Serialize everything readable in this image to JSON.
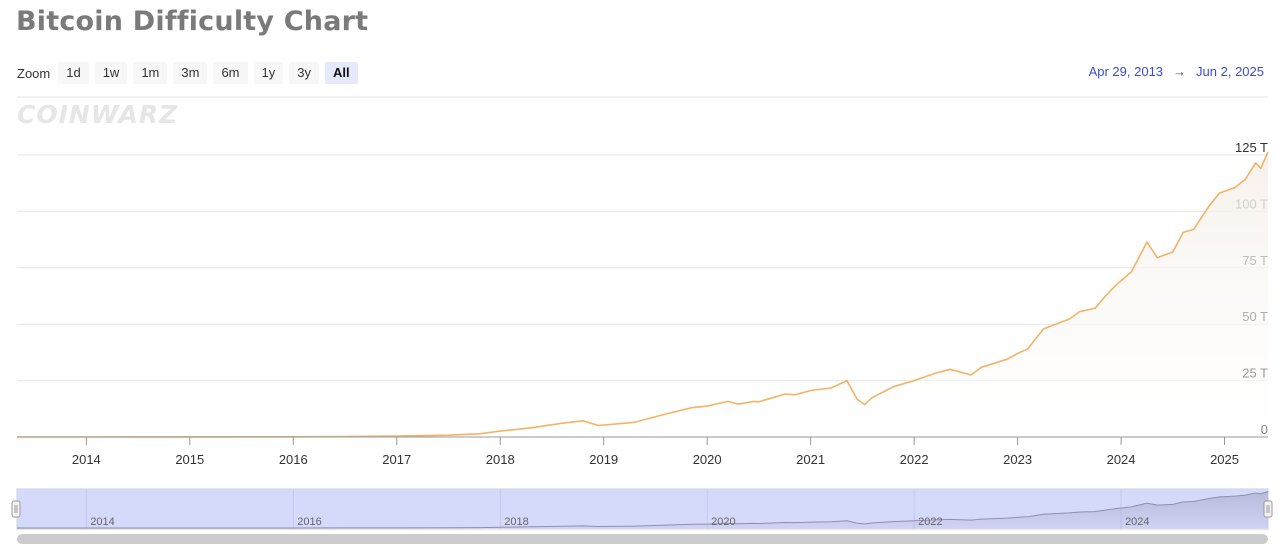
{
  "title": "Bitcoin Difficulty Chart",
  "zoom": {
    "label": "Zoom",
    "buttons": [
      "1d",
      "1w",
      "1m",
      "3m",
      "6m",
      "1y",
      "3y",
      "All"
    ],
    "active": "All"
  },
  "range": {
    "from": "Apr 29, 2013",
    "arrow": "→",
    "to": "Jun 2, 2025"
  },
  "logo_text": "COINWARZ",
  "colors": {
    "line": "#f2b367",
    "area_top": "#f5efe8",
    "navigator_mask": "#d2d6fa",
    "range_date": "#3b4ccf"
  },
  "chart_data": {
    "type": "area",
    "title": "Bitcoin Difficulty Chart",
    "xlabel": "",
    "ylabel": "",
    "y_unit": "T",
    "ylim": [
      0,
      125
    ],
    "yticks": [
      0,
      25,
      50,
      75,
      100,
      125
    ],
    "ytick_labels": [
      "0",
      "25 T",
      "50 T",
      "75 T",
      "100 T",
      "125 T"
    ],
    "xlim": [
      2013.33,
      2025.42
    ],
    "xticks": [
      "2014",
      "2015",
      "2016",
      "2017",
      "2018",
      "2019",
      "2020",
      "2021",
      "2022",
      "2023",
      "2024",
      "2025"
    ],
    "navigator_ticks": [
      "2014",
      "2016",
      "2018",
      "2020",
      "2022",
      "2024"
    ],
    "grid": true,
    "legend": "none",
    "series": [
      {
        "x": [
          2013.33,
          2014.0,
          2015.0,
          2016.0,
          2016.5,
          2017.0,
          2017.5,
          2017.8,
          2018.0,
          2018.3,
          2018.6,
          2018.8,
          2018.95,
          2019.3,
          2019.6,
          2019.85,
          2020.0,
          2020.2,
          2020.3,
          2020.45,
          2020.5,
          2020.75,
          2020.85,
          2021.0,
          2021.2,
          2021.35,
          2021.45,
          2021.52,
          2021.6,
          2021.8,
          2022.0,
          2022.2,
          2022.35,
          2022.55,
          2022.65,
          2022.9,
          2023.0,
          2023.1,
          2023.25,
          2023.5,
          2023.6,
          2023.75,
          2023.85,
          2023.95,
          2024.1,
          2024.25,
          2024.35,
          2024.5,
          2024.6,
          2024.7,
          2024.85,
          2024.95,
          2025.1,
          2025.2,
          2025.3,
          2025.35,
          2025.42
        ],
        "y": [
          0.0,
          0.01,
          0.05,
          0.1,
          0.2,
          0.4,
          0.8,
          1.4,
          2.6,
          4.1,
          6.1,
          7.2,
          5.1,
          6.5,
          10.2,
          13.0,
          13.7,
          15.8,
          14.6,
          15.8,
          15.6,
          19.0,
          18.7,
          20.6,
          21.7,
          25.0,
          16.7,
          14.4,
          17.6,
          22.3,
          25.0,
          28.2,
          30.0,
          27.5,
          30.9,
          34.5,
          37.0,
          39.1,
          47.9,
          52.3,
          55.6,
          57.1,
          62.5,
          67.3,
          73.2,
          86.4,
          79.5,
          82.0,
          90.7,
          92.0,
          102.3,
          108.1,
          110.6,
          114.2,
          121.5,
          119.1,
          126.4
        ]
      }
    ]
  }
}
